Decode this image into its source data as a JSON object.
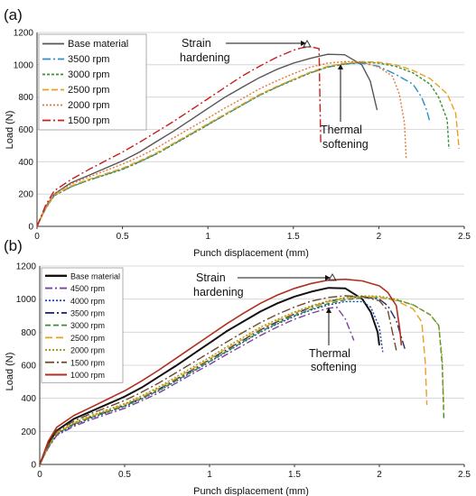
{
  "panels": [
    {
      "panel_label": "(a)",
      "annotations": {
        "strain": [
          "Strain",
          "hardening"
        ],
        "thermal": [
          "Thermal",
          "softening"
        ]
      }
    },
    {
      "panel_label": "(b)",
      "annotations": {
        "strain": [
          "Strain",
          "hardening"
        ],
        "thermal": [
          "Thermal",
          "softening"
        ]
      }
    }
  ],
  "chart_data": [
    {
      "type": "line",
      "panel": "(a)",
      "xlabel": "Punch displacement (mm)",
      "ylabel": "Load (N)",
      "xlim": [
        0,
        2.5
      ],
      "ylim": [
        0,
        1200
      ],
      "xticks": [
        "0",
        "0.5",
        "1",
        "1.5",
        "2",
        "2.5"
      ],
      "yticks": [
        "0",
        "200",
        "400",
        "600",
        "800",
        "1000",
        "1200"
      ],
      "grid": "horizontal",
      "legend": "top-left",
      "series": [
        {
          "name": "Base material",
          "color": "#555555",
          "dash": "solid",
          "x": [
            0,
            0.05,
            0.1,
            0.2,
            0.3,
            0.4,
            0.5,
            0.6,
            0.7,
            0.8,
            0.9,
            1.0,
            1.1,
            1.2,
            1.3,
            1.4,
            1.5,
            1.6,
            1.7,
            1.8,
            1.9,
            1.95,
            1.99
          ],
          "y": [
            0,
            120,
            200,
            270,
            315,
            360,
            405,
            460,
            525,
            590,
            660,
            730,
            800,
            860,
            920,
            970,
            1010,
            1040,
            1065,
            1062,
            1000,
            900,
            720
          ]
        },
        {
          "name": "3500 rpm",
          "color": "#2e8fc4",
          "dash": "9,3,2,3",
          "x": [
            0,
            0.05,
            0.1,
            0.2,
            0.3,
            0.4,
            0.5,
            0.6,
            0.7,
            0.8,
            0.9,
            1.0,
            1.1,
            1.2,
            1.3,
            1.4,
            1.5,
            1.6,
            1.7,
            1.8,
            1.9,
            2.0,
            2.1,
            2.2,
            2.25,
            2.28,
            2.3
          ],
          "y": [
            0,
            110,
            190,
            245,
            285,
            320,
            355,
            400,
            450,
            510,
            570,
            630,
            690,
            750,
            810,
            860,
            910,
            950,
            985,
            1005,
            1010,
            990,
            940,
            880,
            800,
            720,
            640
          ]
        },
        {
          "name": "3000 rpm",
          "color": "#3a8e3a",
          "dash": "3,2",
          "x": [
            0,
            0.05,
            0.1,
            0.2,
            0.3,
            0.4,
            0.5,
            0.6,
            0.7,
            0.8,
            0.9,
            1.0,
            1.1,
            1.2,
            1.3,
            1.4,
            1.5,
            1.6,
            1.7,
            1.8,
            1.9,
            2.0,
            2.1,
            2.2,
            2.3,
            2.35,
            2.4,
            2.41
          ],
          "y": [
            0,
            110,
            190,
            245,
            285,
            318,
            352,
            398,
            448,
            508,
            568,
            628,
            690,
            750,
            810,
            860,
            905,
            950,
            985,
            1005,
            1015,
            1010,
            990,
            950,
            880,
            800,
            660,
            480
          ]
        },
        {
          "name": "2500 rpm",
          "color": "#e8a020",
          "dash": "7,3",
          "x": [
            0,
            0.05,
            0.1,
            0.2,
            0.3,
            0.4,
            0.5,
            0.6,
            0.7,
            0.8,
            0.9,
            1.0,
            1.1,
            1.2,
            1.3,
            1.4,
            1.5,
            1.6,
            1.7,
            1.8,
            1.9,
            2.0,
            2.1,
            2.2,
            2.3,
            2.4,
            2.45,
            2.47
          ],
          "y": [
            0,
            112,
            195,
            250,
            290,
            325,
            360,
            405,
            455,
            515,
            575,
            635,
            695,
            755,
            815,
            865,
            910,
            955,
            990,
            1010,
            1020,
            1015,
            1000,
            965,
            915,
            820,
            700,
            480
          ]
        },
        {
          "name": "2000 rpm",
          "color": "#e07a3a",
          "dash": "2,2",
          "x": [
            0,
            0.05,
            0.1,
            0.2,
            0.3,
            0.4,
            0.5,
            0.6,
            0.7,
            0.8,
            0.9,
            1.0,
            1.1,
            1.2,
            1.3,
            1.4,
            1.5,
            1.6,
            1.7,
            1.8,
            1.9,
            2.0,
            2.08,
            2.12,
            2.15,
            2.16
          ],
          "y": [
            0,
            115,
            200,
            262,
            305,
            345,
            385,
            432,
            485,
            548,
            610,
            670,
            732,
            790,
            850,
            900,
            945,
            985,
            1010,
            1020,
            1018,
            985,
            930,
            820,
            640,
            420
          ]
        },
        {
          "name": "1500 rpm",
          "color": "#c81e1e",
          "dash": "9,3,2,3",
          "x": [
            0,
            0.05,
            0.1,
            0.2,
            0.3,
            0.4,
            0.5,
            0.6,
            0.7,
            0.8,
            0.9,
            1.0,
            1.1,
            1.2,
            1.3,
            1.4,
            1.5,
            1.55,
            1.6,
            1.65,
            1.66
          ],
          "y": [
            0,
            130,
            220,
            290,
            350,
            405,
            460,
            520,
            585,
            650,
            720,
            790,
            860,
            930,
            990,
            1045,
            1090,
            1105,
            1112,
            1100,
            520
          ]
        }
      ]
    },
    {
      "type": "line",
      "panel": "(b)",
      "xlabel": "Punch displacement (mm)",
      "ylabel": "Load (N)",
      "xlim": [
        0,
        2.5
      ],
      "ylim": [
        0,
        1200
      ],
      "xticks": [
        "0",
        "0.5",
        "1",
        "1.5",
        "2",
        "2.5"
      ],
      "yticks": [
        "0",
        "200",
        "400",
        "600",
        "800",
        "1000",
        "1200"
      ],
      "grid": "horizontal",
      "legend": "top-left",
      "series": [
        {
          "name": "Base material",
          "color": "#111111",
          "dash": "solid",
          "width": 2,
          "x": [
            0,
            0.05,
            0.1,
            0.2,
            0.3,
            0.4,
            0.5,
            0.6,
            0.7,
            0.8,
            0.9,
            1.0,
            1.1,
            1.2,
            1.3,
            1.4,
            1.5,
            1.6,
            1.7,
            1.8,
            1.9,
            1.95,
            1.99,
            2.0
          ],
          "y": [
            0,
            125,
            205,
            275,
            320,
            365,
            410,
            465,
            530,
            595,
            665,
            735,
            805,
            865,
            925,
            975,
            1015,
            1045,
            1068,
            1065,
            1000,
            920,
            800,
            720
          ]
        },
        {
          "name": "4500  rpm",
          "color": "#7b3fa0",
          "dash": "8,3,2,3",
          "x": [
            0,
            0.05,
            0.1,
            0.2,
            0.3,
            0.4,
            0.5,
            0.6,
            0.7,
            0.8,
            0.9,
            1.0,
            1.1,
            1.2,
            1.3,
            1.4,
            1.5,
            1.6,
            1.7,
            1.75,
            1.8,
            1.85
          ],
          "y": [
            0,
            100,
            175,
            230,
            270,
            305,
            340,
            385,
            432,
            490,
            548,
            605,
            665,
            722,
            780,
            832,
            878,
            915,
            945,
            950,
            880,
            750
          ]
        },
        {
          "name": "4000  rpm",
          "color": "#1f3fa8",
          "dash": "2,2",
          "x": [
            0,
            0.05,
            0.1,
            0.2,
            0.3,
            0.4,
            0.5,
            0.6,
            0.7,
            0.8,
            0.9,
            1.0,
            1.1,
            1.2,
            1.3,
            1.4,
            1.5,
            1.6,
            1.7,
            1.8,
            1.9,
            1.95,
            2.0,
            2.02
          ],
          "y": [
            0,
            105,
            180,
            238,
            280,
            315,
            350,
            396,
            445,
            502,
            560,
            620,
            680,
            740,
            800,
            850,
            895,
            935,
            965,
            985,
            985,
            950,
            830,
            680
          ]
        },
        {
          "name": "3500  rpm",
          "color": "#1f2f6e",
          "dash": "10,3,2,3",
          "x": [
            0,
            0.05,
            0.1,
            0.2,
            0.3,
            0.4,
            0.5,
            0.6,
            0.7,
            0.8,
            0.9,
            1.0,
            1.1,
            1.2,
            1.3,
            1.4,
            1.5,
            1.6,
            1.7,
            1.8,
            1.9,
            2.0,
            2.05,
            2.1,
            2.15
          ],
          "y": [
            0,
            110,
            188,
            245,
            287,
            322,
            358,
            404,
            455,
            513,
            572,
            633,
            694,
            754,
            814,
            864,
            910,
            952,
            985,
            1005,
            1015,
            1000,
            960,
            870,
            700
          ]
        },
        {
          "name": "3000  rpm",
          "color": "#3a8e3a",
          "dash": "6,3",
          "x": [
            0,
            0.05,
            0.1,
            0.2,
            0.3,
            0.4,
            0.5,
            0.6,
            0.7,
            0.8,
            0.9,
            1.0,
            1.1,
            1.2,
            1.3,
            1.4,
            1.5,
            1.6,
            1.7,
            1.8,
            1.9,
            2.0,
            2.1,
            2.2,
            2.3,
            2.35,
            2.37,
            2.38
          ],
          "y": [
            0,
            108,
            185,
            242,
            283,
            318,
            353,
            398,
            448,
            505,
            563,
            623,
            684,
            744,
            804,
            855,
            900,
            940,
            973,
            995,
            1008,
            1010,
            995,
            965,
            905,
            840,
            600,
            280
          ]
        },
        {
          "name": "2500  rpm",
          "color": "#e8a020",
          "dash": "8,4",
          "x": [
            0,
            0.05,
            0.1,
            0.2,
            0.3,
            0.4,
            0.5,
            0.6,
            0.7,
            0.8,
            0.9,
            1.0,
            1.1,
            1.2,
            1.3,
            1.4,
            1.5,
            1.6,
            1.7,
            1.8,
            1.9,
            2.0,
            2.1,
            2.2,
            2.25,
            2.27,
            2.28
          ],
          "y": [
            0,
            110,
            190,
            248,
            290,
            326,
            362,
            408,
            460,
            518,
            578,
            638,
            700,
            760,
            820,
            870,
            915,
            955,
            985,
            1005,
            1015,
            1012,
            990,
            940,
            860,
            620,
            360
          ]
        },
        {
          "name": "2000  rpm",
          "color": "#9a9a1a",
          "dash": "2,2",
          "x": [
            0,
            0.05,
            0.1,
            0.2,
            0.3,
            0.4,
            0.5,
            0.6,
            0.7,
            0.8,
            0.9,
            1.0,
            1.1,
            1.2,
            1.3,
            1.4,
            1.5,
            1.6,
            1.7,
            1.8,
            1.9,
            2.0,
            2.1,
            2.2,
            2.3,
            2.35,
            2.37,
            2.38
          ],
          "y": [
            0,
            112,
            192,
            252,
            295,
            332,
            368,
            415,
            468,
            528,
            588,
            648,
            710,
            770,
            830,
            878,
            922,
            960,
            990,
            1010,
            1020,
            1018,
            1000,
            965,
            905,
            840,
            640,
            330
          ]
        },
        {
          "name": "1500  rpm",
          "color": "#6b4a2a",
          "dash": "10,3,2,3",
          "x": [
            0,
            0.05,
            0.1,
            0.2,
            0.3,
            0.4,
            0.5,
            0.6,
            0.7,
            0.8,
            0.9,
            1.0,
            1.1,
            1.2,
            1.3,
            1.4,
            1.5,
            1.6,
            1.7,
            1.8,
            1.9,
            2.0,
            2.05,
            2.1
          ],
          "y": [
            0,
            118,
            200,
            262,
            307,
            347,
            387,
            437,
            492,
            553,
            615,
            677,
            740,
            800,
            858,
            908,
            952,
            988,
            1010,
            1020,
            1015,
            990,
            930,
            690
          ]
        },
        {
          "name": "1000  rpm",
          "color": "#b03020",
          "dash": "solid",
          "width": 1.6,
          "x": [
            0,
            0.05,
            0.1,
            0.2,
            0.3,
            0.4,
            0.5,
            0.6,
            0.7,
            0.8,
            0.9,
            1.0,
            1.1,
            1.2,
            1.3,
            1.4,
            1.5,
            1.6,
            1.7,
            1.8,
            1.9,
            2.0,
            2.05,
            2.1,
            2.12,
            2.13
          ],
          "y": [
            0,
            140,
            225,
            295,
            345,
            395,
            445,
            505,
            570,
            640,
            710,
            780,
            850,
            915,
            975,
            1025,
            1065,
            1095,
            1115,
            1120,
            1110,
            1080,
            1040,
            960,
            820,
            720
          ]
        }
      ]
    }
  ]
}
